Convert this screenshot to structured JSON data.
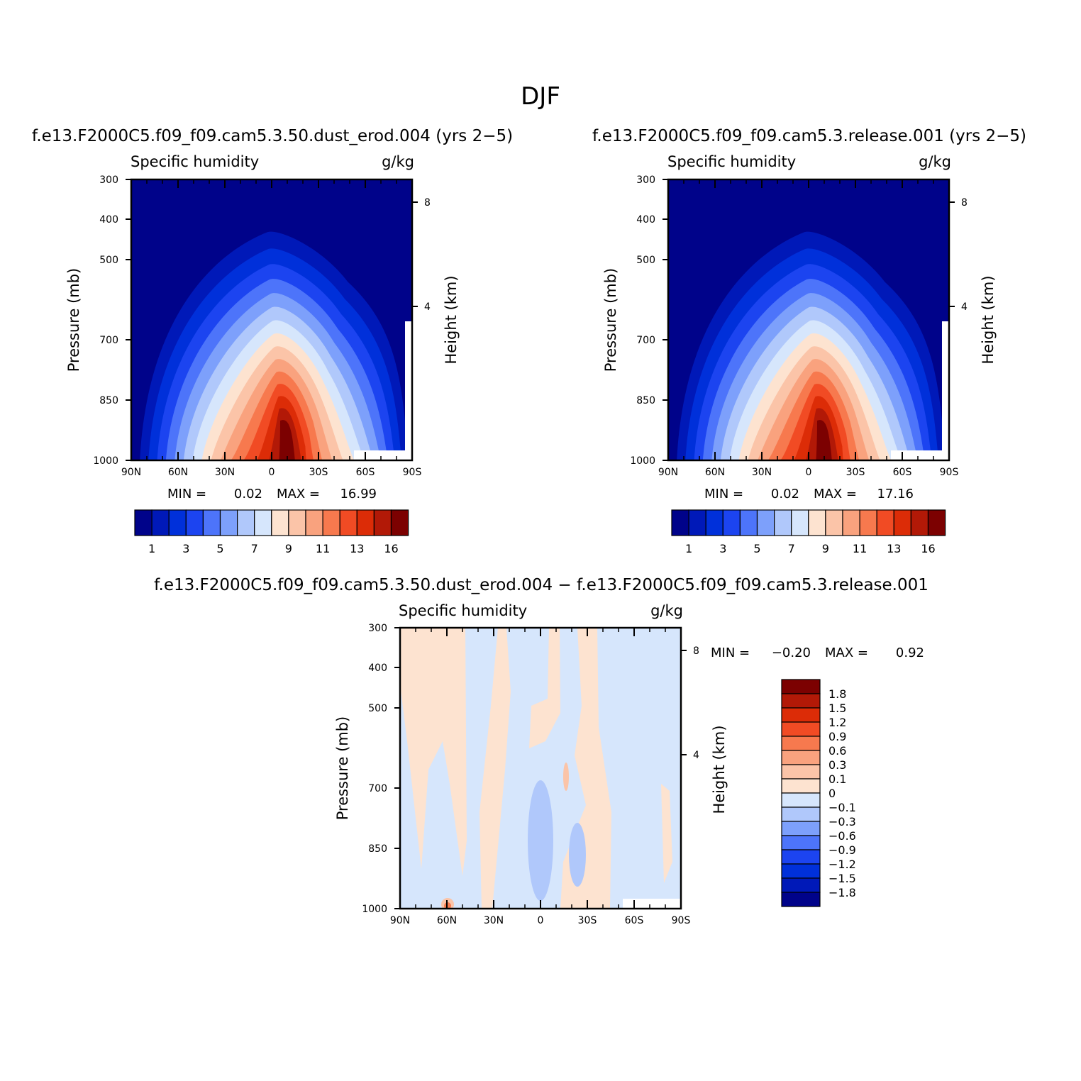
{
  "figure": {
    "title": "DJF"
  },
  "chart_data": [
    {
      "type": "heatmap",
      "title": "f.e13.F2000C5.f09_f09.cam5.3.50.dust_erod.004 (yrs 2−5)",
      "variable": "Specific humidity",
      "units": "g/kg",
      "ylabel": "Pressure (mb)",
      "ylabel_right": "Height (km)",
      "x_ticks": [
        "90N",
        "60N",
        "30N",
        "0",
        "30S",
        "60S",
        "90S"
      ],
      "y_ticks": [
        "300",
        "400",
        "500",
        "700",
        "850",
        "1000"
      ],
      "y_right_ticks": [
        "8",
        "4"
      ],
      "xlim": [
        90,
        -90
      ],
      "ylim": [
        1000,
        300
      ],
      "min_label": "MIN =",
      "min": "0.02",
      "max_label": "MAX =",
      "max": "16.99",
      "colorbar": {
        "colors": [
          "#00038a",
          "#0019b8",
          "#0030da",
          "#1c44f0",
          "#4d74fa",
          "#7da0fb",
          "#b0c8fb",
          "#d6e6fc",
          "#fde3d0",
          "#fbc4a8",
          "#f9a27e",
          "#f7794e",
          "#f14b24",
          "#dc2c07",
          "#b21907",
          "#7c0101"
        ],
        "labels": [
          "1",
          "3",
          "5",
          "7",
          "9",
          "11",
          "13",
          "16"
        ]
      }
    },
    {
      "type": "heatmap",
      "title": "f.e13.F2000C5.f09_f09.cam5.3.release.001 (yrs 2−5)",
      "variable": "Specific humidity",
      "units": "g/kg",
      "ylabel": "Pressure (mb)",
      "ylabel_right": "Height (km)",
      "x_ticks": [
        "90N",
        "60N",
        "30N",
        "0",
        "30S",
        "60S",
        "90S"
      ],
      "y_ticks": [
        "300",
        "400",
        "500",
        "700",
        "850",
        "1000"
      ],
      "y_right_ticks": [
        "8",
        "4"
      ],
      "xlim": [
        90,
        -90
      ],
      "ylim": [
        1000,
        300
      ],
      "min_label": "MIN =",
      "min": "0.02",
      "max_label": "MAX =",
      "max": "17.16",
      "colorbar": {
        "colors": [
          "#00038a",
          "#0019b8",
          "#0030da",
          "#1c44f0",
          "#4d74fa",
          "#7da0fb",
          "#b0c8fb",
          "#d6e6fc",
          "#fde3d0",
          "#fbc4a8",
          "#f9a27e",
          "#f7794e",
          "#f14b24",
          "#dc2c07",
          "#b21907",
          "#7c0101"
        ],
        "labels": [
          "1",
          "3",
          "5",
          "7",
          "9",
          "11",
          "13",
          "16"
        ]
      }
    },
    {
      "type": "heatmap",
      "title": "f.e13.F2000C5.f09_f09.cam5.3.50.dust_erod.004 − f.e13.F2000C5.f09_f09.cam5.3.release.001",
      "variable": "Specific humidity",
      "units": "g/kg",
      "ylabel": "Pressure (mb)",
      "ylabel_right": "Height (km)",
      "x_ticks": [
        "90N",
        "60N",
        "30N",
        "0",
        "30S",
        "60S",
        "90S"
      ],
      "y_ticks": [
        "300",
        "400",
        "500",
        "700",
        "850",
        "1000"
      ],
      "y_right_ticks": [
        "8",
        "4"
      ],
      "xlim": [
        90,
        -90
      ],
      "ylim": [
        1000,
        300
      ],
      "min_label": "MIN =",
      "min": "−0.20",
      "max_label": "MAX =",
      "max": "0.92",
      "colorbar": {
        "colors": [
          "#7c0101",
          "#b21907",
          "#dc2c07",
          "#f14b24",
          "#f7794e",
          "#f9a27e",
          "#fbc4a8",
          "#fde3d0",
          "#d6e6fc",
          "#b0c8fb",
          "#7da0fb",
          "#4d74fa",
          "#1c44f0",
          "#0030da",
          "#0019b8",
          "#00038a"
        ],
        "labels": [
          "1.8",
          "1.5",
          "1.2",
          "0.9",
          "0.6",
          "0.3",
          "0.1",
          "0",
          "−0.1",
          "−0.3",
          "−0.6",
          "−0.9",
          "−1.2",
          "−1.5",
          "−1.8"
        ]
      }
    }
  ]
}
